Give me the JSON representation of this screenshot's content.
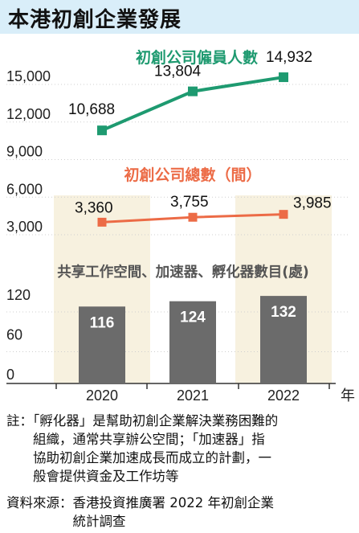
{
  "title": "本港初創企業發展",
  "colors": {
    "title_bg": "#d9eef9",
    "band": "#f7f1df",
    "employees_line": "#1e9a70",
    "companies_line": "#ec6b46",
    "bars": "#6b6b6b",
    "employees_title": "#1e9a70",
    "companies_title": "#ec6b46",
    "bars_title": "#555555"
  },
  "chart_data": [
    {
      "type": "line",
      "title": "初創公司僱員人數",
      "x": [
        "2020",
        "2021",
        "2022"
      ],
      "values": [
        10688,
        13804,
        14932
      ],
      "data_labels": [
        "10,688",
        "13,804",
        "14,932"
      ]
    },
    {
      "type": "line",
      "title": "初創公司總數（間）",
      "x": [
        "2020",
        "2021",
        "2022"
      ],
      "values": [
        3360,
        3755,
        3985
      ],
      "data_labels": [
        "3,360",
        "3,755",
        "3,985"
      ]
    },
    {
      "type": "bar",
      "title": "共享工作空間、加速器、孵化器數目(處)",
      "categories": [
        "2020",
        "2021",
        "2022"
      ],
      "values": [
        116,
        124,
        132
      ],
      "data_labels": [
        "116",
        "124",
        "132"
      ],
      "ylim": [
        0,
        120
      ],
      "yticks": [
        "0",
        "60",
        "120"
      ]
    }
  ],
  "upper_axis": {
    "ylim": [
      3000,
      15000
    ],
    "yticks": [
      "3,000",
      "6,000",
      "9,000",
      "12,000",
      "15,000"
    ]
  },
  "x_axis": {
    "ticks": [
      "2020",
      "2021",
      "2022"
    ],
    "unit": "年"
  },
  "notes": [
    "註：「孵化器」是幫助初創企業解決業務困難的",
    "　　組織，通常共享辦公空間；「加速器」指",
    "　　協助初創企業加速成長而成立的計劃，一",
    "　　般會提供資金及工作坊等"
  ],
  "source": [
    "資料來源：香港投資推廣署 2022 年初創企業",
    "　　　　　統計調查"
  ]
}
